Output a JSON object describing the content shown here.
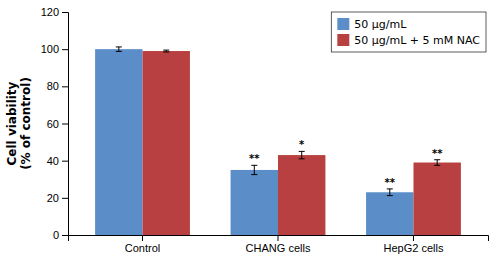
{
  "chart_data": {
    "type": "bar",
    "categories": [
      "Control",
      "CHANG cells",
      "HepG2 cells"
    ],
    "series": [
      {
        "name": "50 μg/mL",
        "color": "#5B8DC8",
        "values": [
          100,
          35,
          23
        ],
        "errors": [
          1.2,
          2.5,
          1.8
        ],
        "annotations": [
          null,
          "**",
          "**"
        ]
      },
      {
        "name": "50 μg/mL + 5 mM NAC",
        "color": "#B94040",
        "values": [
          99,
          43,
          39
        ],
        "errors": [
          0.5,
          2.0,
          1.5
        ],
        "annotations": [
          null,
          "*",
          "**"
        ]
      }
    ],
    "ylabel": "Cell viability\n(% of control)",
    "ylim": [
      0,
      120
    ],
    "yticks": [
      0,
      20,
      40,
      60,
      80,
      100,
      120
    ],
    "grid": false,
    "legend": "upper right"
  }
}
